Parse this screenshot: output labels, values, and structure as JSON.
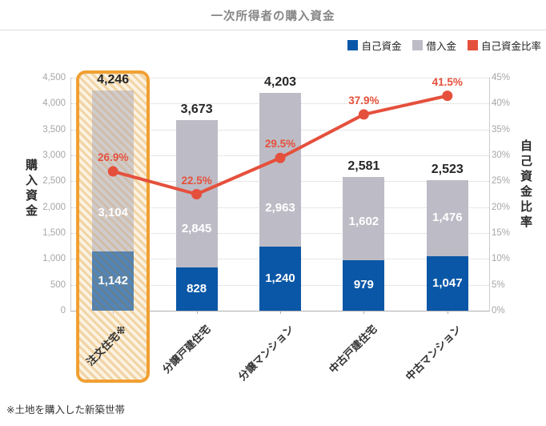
{
  "title": "一次所得者の購入資金",
  "footnote": "※土地を購入した新築世帯",
  "legend": [
    {
      "label": "自己資金",
      "color": "#0a57a7"
    },
    {
      "label": "借入金",
      "color": "#bdbcc6"
    },
    {
      "label": "自己資金比率",
      "color": "#e5503c"
    }
  ],
  "axes": {
    "left": {
      "title": "購入資金",
      "ticks": [
        "4,500",
        "4,000",
        "3,500",
        "3,000",
        "2,500",
        "2,000",
        "1,500",
        "1,000",
        "500",
        "0"
      ]
    },
    "right": {
      "title": "自己資金比率",
      "ticks": [
        "45%",
        "40%",
        "35%",
        "30%",
        "25%",
        "20%",
        "15%",
        "10%",
        "5%",
        "0%"
      ]
    }
  },
  "colors": {
    "own_funds": "#0a57a7",
    "borrowed": "#bdbcc6",
    "ratio_line": "#e5503c",
    "highlight_border": "#f0a032",
    "grid": "#cfcfcf"
  },
  "chart_data": {
    "type": "bar",
    "subtype": "stacked-bars-with-line",
    "title": "一次所得者の購入資金",
    "categories": [
      "注文住宅※",
      "分譲戸建住宅",
      "分譲マンション",
      "中古戸建住宅",
      "中古マンション"
    ],
    "series": [
      {
        "name": "自己資金",
        "type": "bar",
        "color": "#0a57a7",
        "values": [
          1142,
          828,
          1240,
          979,
          1047
        ]
      },
      {
        "name": "借入金",
        "type": "bar",
        "color": "#bdbcc6",
        "values": [
          3104,
          2845,
          2963,
          1602,
          1476
        ]
      },
      {
        "name": "自己資金比率",
        "type": "line",
        "color": "#e5503c",
        "unit": "%",
        "values": [
          26.9,
          22.5,
          29.5,
          37.9,
          41.5
        ]
      }
    ],
    "totals": [
      4246,
      3673,
      4203,
      2581,
      2523
    ],
    "ylabel_left": "購入資金",
    "ylabel_right": "自己資金比率",
    "y_left_range": [
      0,
      4500
    ],
    "y_left_step": 500,
    "y_right_range": [
      0,
      45
    ],
    "y_right_step": 5,
    "grid": "dotted-horizontal",
    "legend_position": "top-right",
    "highlight_category": 0
  }
}
